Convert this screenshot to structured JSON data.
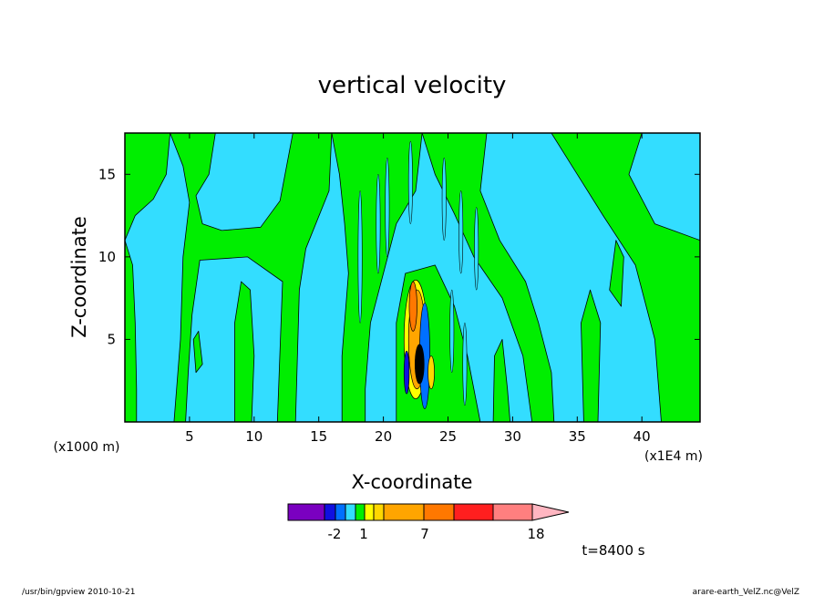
{
  "chart_data": {
    "type": "heatmap",
    "title": "vertical velocity",
    "xlabel": "X-coordinate",
    "ylabel": "Z-coordinate",
    "x_unit_left": "(x1000 m)",
    "x_unit_right": "(x1E4 m)",
    "xlim": [
      0,
      44.5
    ],
    "ylim": [
      0,
      17.5
    ],
    "x_ticks": [
      "5",
      "10",
      "15",
      "20",
      "25",
      "30",
      "35",
      "40"
    ],
    "x_tick_values": [
      5,
      10,
      15,
      20,
      25,
      30,
      35,
      40
    ],
    "y_ticks": [
      "5",
      "10",
      "15"
    ],
    "y_tick_values": [
      5,
      10,
      15
    ],
    "field": {
      "background_negative_color": "#33ddff",
      "background_positive_color": "#00ee00",
      "convective_core_x_range": [
        21.5,
        24.0
      ],
      "convective_core_z_range": [
        1.0,
        9.0
      ]
    },
    "colorbar": {
      "colors": [
        "#7a00c0",
        "#1010e0",
        "#0070ff",
        "#33ddff",
        "#00ee00",
        "#ffff00",
        "#ffd700",
        "#ffa500",
        "#ff7800",
        "#ff1f1f",
        "#ff7f7f",
        "#ffb6c1"
      ],
      "labels": [
        "-2",
        "1",
        "7",
        "18"
      ]
    },
    "time_label": "t=8400 s"
  },
  "footer": {
    "left": "/usr/bin/gpview   2010-10-21",
    "right": "arare-earth_VelZ.nc@VelZ"
  }
}
